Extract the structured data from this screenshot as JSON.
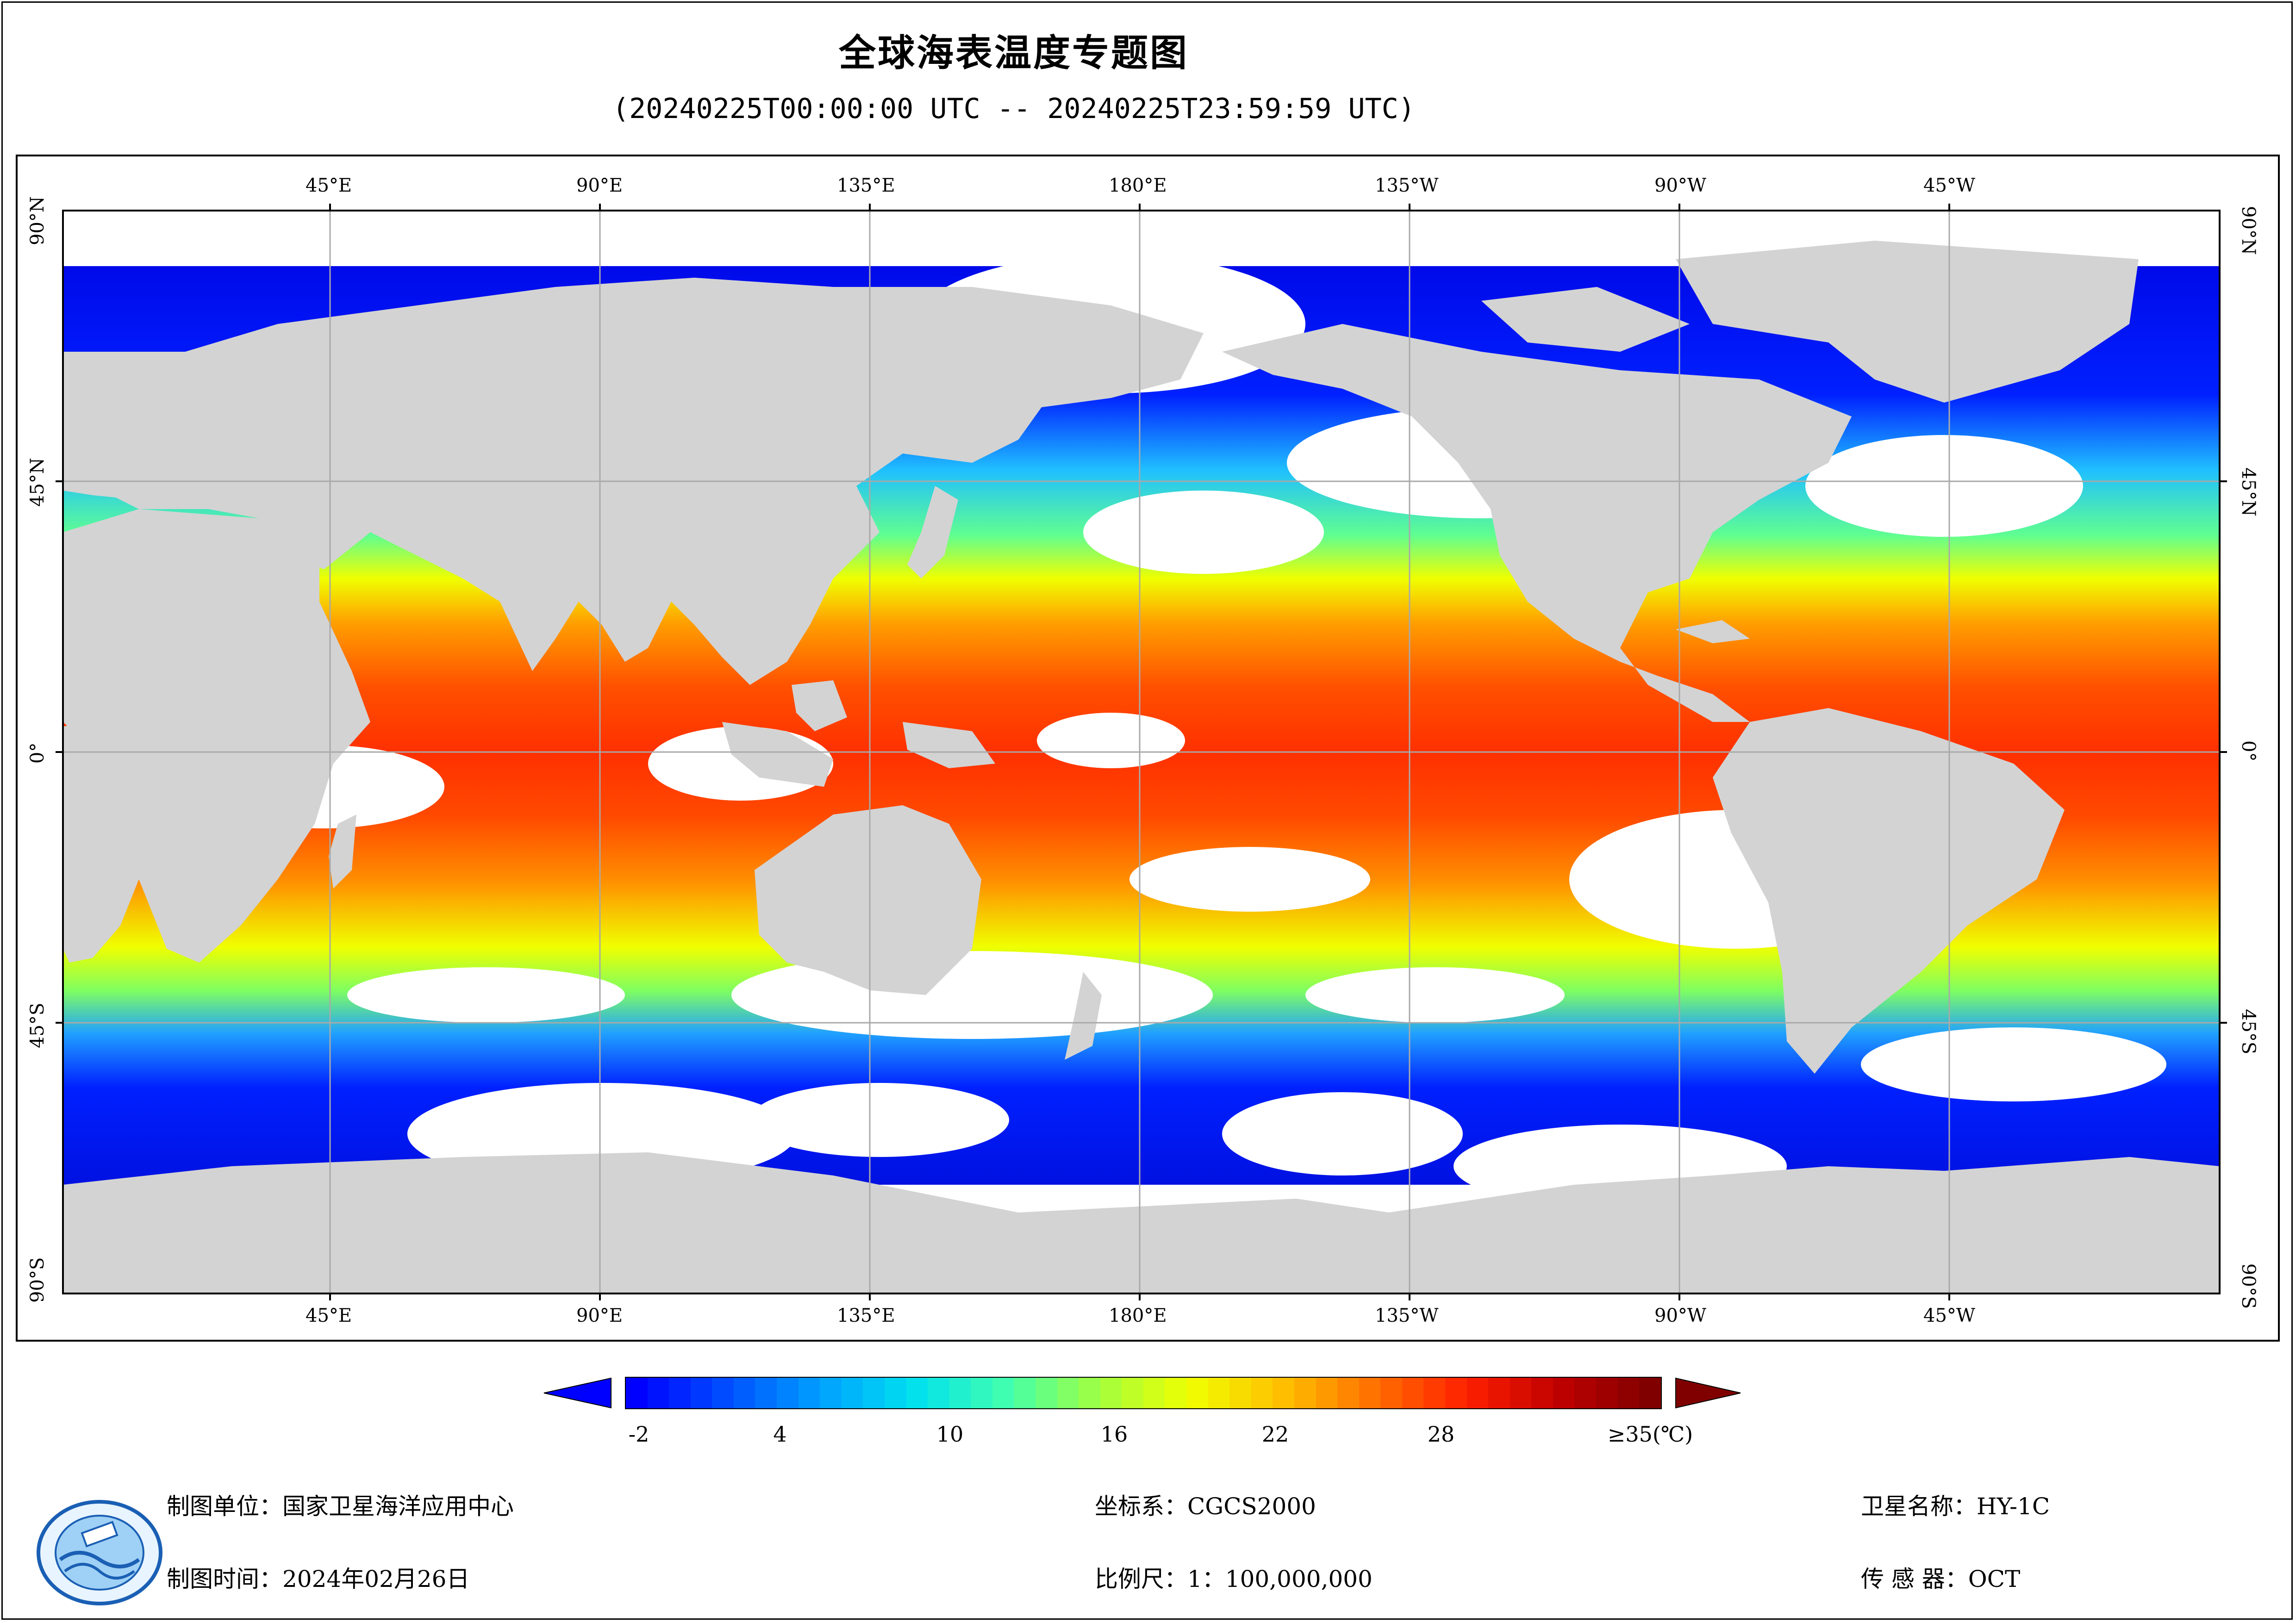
{
  "title": "全球海表温度专题图",
  "subtitle": "(20240225T00:00:00 UTC -- 20240225T23:59:59 UTC)",
  "map": {
    "top_lon_labels": [
      "45°E",
      "90°E",
      "135°E",
      "180°E",
      "135°W",
      "90°W",
      "45°W"
    ],
    "bottom_lon_labels": [
      "45°E",
      "90°E",
      "135°E",
      "180°E",
      "135°W",
      "90°W",
      "45°W"
    ],
    "lat_labels": [
      "90°N",
      "45°N",
      "0°",
      "45°S",
      "90°S"
    ],
    "colors": {
      "land": "#d3d3d3",
      "no_data": "#ffffff",
      "grid": "#a9a9a9"
    }
  },
  "legend": {
    "tick_labels": [
      "-2",
      "4",
      "10",
      "16",
      "22",
      "28",
      "≥35(℃)"
    ],
    "colors": [
      "#0000ff",
      "#0050ff",
      "#00a0ff",
      "#00e0f0",
      "#40ffb0",
      "#a0ff40",
      "#f0ff00",
      "#ffc000",
      "#ff7000",
      "#ff2000",
      "#c00000",
      "#800000"
    ],
    "under_color": "#0000ff",
    "over_color": "#800000"
  },
  "footer": {
    "producer": "制图单位：国家卫星海洋应用中心",
    "date": "制图时间：2024年02月26日",
    "crs": "坐标系：CGCS2000",
    "scale": "比例尺：1：100,000,000",
    "satellite": "卫星名称：HY-1C",
    "sensor": "传 感 器：OCT"
  }
}
